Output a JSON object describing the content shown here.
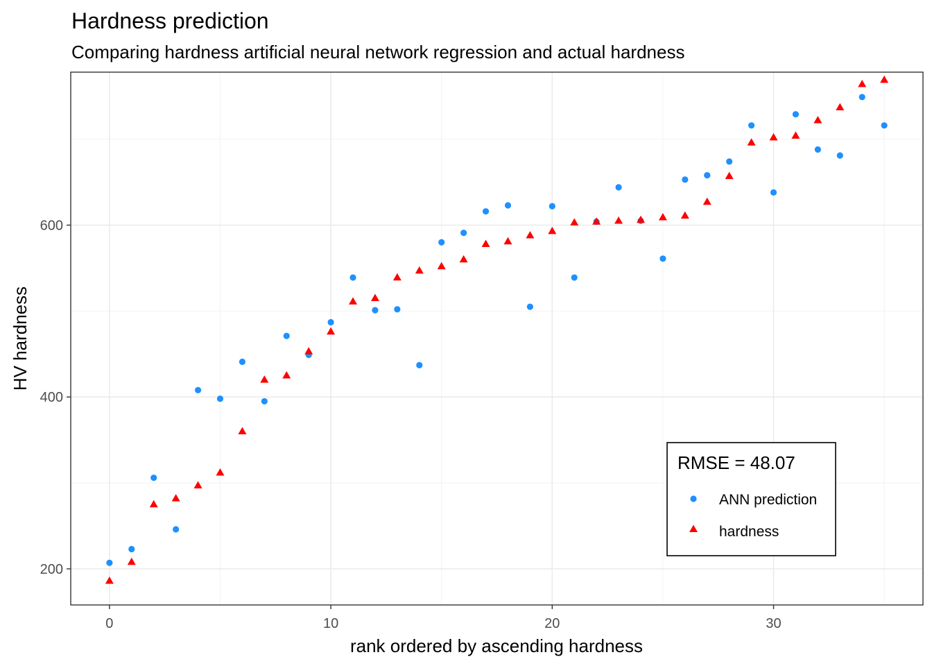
{
  "chart_data": {
    "type": "scatter",
    "title": "Hardness prediction",
    "subtitle": "Comparing hardness artificial neural network regression and actual hardness",
    "xlabel": "rank ordered by ascending hardness",
    "ylabel": "HV hardness",
    "xlim": [
      -1.75,
      36.75
    ],
    "ylim": [
      158,
      778
    ],
    "x_ticks": [
      0,
      10,
      20,
      30
    ],
    "y_ticks": [
      200,
      400,
      600
    ],
    "grid": true,
    "legend": {
      "title": "RMSE =  48.07",
      "placement": "bottom-right"
    },
    "x": [
      0,
      1,
      2,
      3,
      4,
      5,
      6,
      7,
      8,
      9,
      10,
      11,
      12,
      13,
      14,
      15,
      16,
      17,
      18,
      19,
      20,
      21,
      22,
      23,
      24,
      25,
      26,
      27,
      28,
      29,
      30,
      31,
      32,
      33,
      34,
      35
    ],
    "series": [
      {
        "name": "ANN prediction",
        "marker": "circle",
        "color": "#1E90FF",
        "values": [
          207,
          223,
          306,
          246,
          408,
          398,
          441,
          395,
          471,
          449,
          487,
          539,
          501,
          502,
          437,
          580,
          591,
          616,
          623,
          505,
          622,
          539,
          604,
          644,
          605,
          561,
          653,
          658,
          674,
          716,
          638,
          729,
          688,
          681,
          749,
          716
        ]
      },
      {
        "name": "hardness",
        "marker": "triangle",
        "color": "#FF0000",
        "values": [
          186,
          208,
          275,
          282,
          297,
          312,
          360,
          420,
          425,
          453,
          476,
          511,
          515,
          539,
          547,
          552,
          560,
          578,
          581,
          588,
          593,
          603,
          604,
          605,
          606,
          609,
          611,
          627,
          657,
          696,
          702,
          704,
          722,
          737,
          764,
          769
        ]
      }
    ]
  }
}
